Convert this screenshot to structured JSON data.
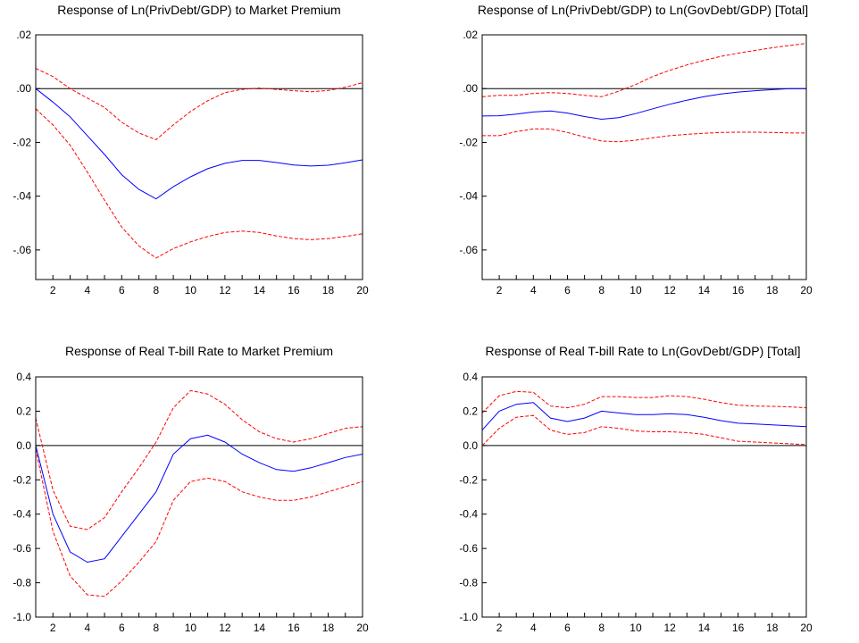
{
  "colors": {
    "response": "#0000ff",
    "bands": "#ff0000",
    "zero_line": "#000000",
    "frame": "#000000"
  },
  "chart_data": [
    {
      "type": "line",
      "title": "Response of Ln(PrivDebt/GDP) to Market Premium",
      "x": [
        1,
        2,
        3,
        4,
        5,
        6,
        7,
        8,
        9,
        10,
        11,
        12,
        13,
        14,
        15,
        16,
        17,
        18,
        19,
        20
      ],
      "xticks": [
        2,
        4,
        6,
        8,
        10,
        12,
        14,
        16,
        18,
        20
      ],
      "xlim": [
        1,
        20
      ],
      "ylim": [
        -0.071,
        0.02
      ],
      "yticks": [
        0.02,
        0.0,
        -0.02,
        -0.04,
        -0.06
      ],
      "ytick_labels": [
        ".02",
        ".00",
        "-.02",
        "-.04",
        "-.06"
      ],
      "series": [
        {
          "role": "response",
          "style": "solid",
          "values": [
            0.0,
            -0.005,
            -0.0105,
            -0.0175,
            -0.0245,
            -0.032,
            -0.0375,
            -0.041,
            -0.0365,
            -0.0328,
            -0.0298,
            -0.0278,
            -0.0267,
            -0.0267,
            -0.0275,
            -0.0284,
            -0.0288,
            -0.0285,
            -0.0276,
            -0.0265
          ]
        },
        {
          "role": "upper band",
          "style": "dashed",
          "values": [
            0.0075,
            0.0045,
            0.0,
            -0.0035,
            -0.007,
            -0.0125,
            -0.0165,
            -0.019,
            -0.0135,
            -0.0085,
            -0.0045,
            -0.0015,
            -0.0003,
            0.0002,
            -0.0003,
            -0.0008,
            -0.0012,
            -0.0007,
            0.0005,
            0.0022
          ]
        },
        {
          "role": "lower band",
          "style": "dashed",
          "values": [
            -0.0075,
            -0.0135,
            -0.021,
            -0.031,
            -0.0415,
            -0.0515,
            -0.0585,
            -0.063,
            -0.0595,
            -0.057,
            -0.055,
            -0.0535,
            -0.053,
            -0.0535,
            -0.0548,
            -0.0558,
            -0.0562,
            -0.0558,
            -0.055,
            -0.054
          ]
        }
      ]
    },
    {
      "type": "line",
      "title": "Response of Ln(PrivDebt/GDP) to Ln(GovDebt/GDP) [Total]",
      "x": [
        1,
        2,
        3,
        4,
        5,
        6,
        7,
        8,
        9,
        10,
        11,
        12,
        13,
        14,
        15,
        16,
        17,
        18,
        19,
        20
      ],
      "xticks": [
        2,
        4,
        6,
        8,
        10,
        12,
        14,
        16,
        18,
        20
      ],
      "xlim": [
        1,
        20
      ],
      "ylim": [
        -0.071,
        0.02
      ],
      "yticks": [
        0.02,
        0.0,
        -0.02,
        -0.04,
        -0.06
      ],
      "ytick_labels": [
        ".02",
        ".00",
        "-.02",
        "-.04",
        "-.06"
      ],
      "series": [
        {
          "role": "response",
          "style": "solid",
          "values": [
            -0.0102,
            -0.0101,
            -0.0095,
            -0.0087,
            -0.0083,
            -0.0091,
            -0.0104,
            -0.0114,
            -0.0108,
            -0.0093,
            -0.0075,
            -0.0058,
            -0.0043,
            -0.003,
            -0.002,
            -0.0013,
            -0.0008,
            -0.0004,
            0.0,
            0.0
          ]
        },
        {
          "role": "upper band",
          "style": "dashed",
          "values": [
            -0.003,
            -0.0025,
            -0.0025,
            -0.0018,
            -0.0015,
            -0.0018,
            -0.0025,
            -0.003,
            -0.001,
            0.0015,
            0.0045,
            0.0068,
            0.0088,
            0.0105,
            0.012,
            0.0132,
            0.0142,
            0.0152,
            0.016,
            0.0168
          ]
        },
        {
          "role": "lower band",
          "style": "dashed",
          "values": [
            -0.0175,
            -0.0175,
            -0.016,
            -0.015,
            -0.015,
            -0.0163,
            -0.018,
            -0.0195,
            -0.0198,
            -0.0192,
            -0.0183,
            -0.0175,
            -0.017,
            -0.0166,
            -0.0163,
            -0.0162,
            -0.0162,
            -0.0163,
            -0.0165,
            -0.0165
          ]
        }
      ]
    },
    {
      "type": "line",
      "title": "Response of Real T-bill Rate to Market Premium",
      "x": [
        1,
        2,
        3,
        4,
        5,
        6,
        7,
        8,
        9,
        10,
        11,
        12,
        13,
        14,
        15,
        16,
        17,
        18,
        19,
        20
      ],
      "xticks": [
        2,
        4,
        6,
        8,
        10,
        12,
        14,
        16,
        18,
        20
      ],
      "xlim": [
        1,
        20
      ],
      "ylim": [
        -1.0,
        0.4
      ],
      "yticks": [
        0.4,
        0.2,
        0.0,
        -0.2,
        -0.4,
        -0.6,
        -0.8,
        -1.0
      ],
      "ytick_labels": [
        "0.4",
        "0.2",
        "0.0",
        "-0.2",
        "-0.4",
        "-0.6",
        "-0.8",
        "-1.0"
      ],
      "series": [
        {
          "role": "response",
          "style": "solid",
          "values": [
            0.0,
            -0.4,
            -0.62,
            -0.68,
            -0.66,
            -0.53,
            -0.4,
            -0.27,
            -0.05,
            0.04,
            0.06,
            0.02,
            -0.05,
            -0.1,
            -0.14,
            -0.15,
            -0.13,
            -0.1,
            -0.07,
            -0.05
          ]
        },
        {
          "role": "upper band",
          "style": "dashed",
          "values": [
            0.16,
            -0.26,
            -0.47,
            -0.49,
            -0.42,
            -0.27,
            -0.13,
            0.02,
            0.22,
            0.32,
            0.3,
            0.24,
            0.15,
            0.08,
            0.04,
            0.02,
            0.04,
            0.07,
            0.1,
            0.11
          ]
        },
        {
          "role": "lower band",
          "style": "dashed",
          "values": [
            -0.02,
            -0.5,
            -0.76,
            -0.87,
            -0.88,
            -0.79,
            -0.68,
            -0.56,
            -0.32,
            -0.21,
            -0.19,
            -0.21,
            -0.27,
            -0.3,
            -0.32,
            -0.32,
            -0.3,
            -0.27,
            -0.24,
            -0.21
          ]
        }
      ]
    },
    {
      "type": "line",
      "title": "Response of Real T-bill Rate to Ln(GovDebt/GDP) [Total]",
      "x": [
        1,
        2,
        3,
        4,
        5,
        6,
        7,
        8,
        9,
        10,
        11,
        12,
        13,
        14,
        15,
        16,
        17,
        18,
        19,
        20
      ],
      "xticks": [
        2,
        4,
        6,
        8,
        10,
        12,
        14,
        16,
        18,
        20
      ],
      "xlim": [
        1,
        20
      ],
      "ylim": [
        -1.0,
        0.4
      ],
      "yticks": [
        0.4,
        0.2,
        0.0,
        -0.2,
        -0.4,
        -0.6,
        -0.8,
        -1.0
      ],
      "ytick_labels": [
        "0.4",
        "0.2",
        "0.0",
        "-0.2",
        "-0.4",
        "-0.6",
        "-0.8",
        "-1.0"
      ],
      "series": [
        {
          "role": "response",
          "style": "solid",
          "values": [
            0.09,
            0.2,
            0.24,
            0.25,
            0.16,
            0.14,
            0.16,
            0.2,
            0.19,
            0.18,
            0.18,
            0.185,
            0.18,
            0.165,
            0.145,
            0.13,
            0.125,
            0.12,
            0.115,
            0.11
          ]
        },
        {
          "role": "upper band",
          "style": "dashed",
          "values": [
            0.19,
            0.29,
            0.315,
            0.31,
            0.23,
            0.22,
            0.24,
            0.285,
            0.285,
            0.28,
            0.28,
            0.29,
            0.285,
            0.27,
            0.25,
            0.235,
            0.23,
            0.228,
            0.225,
            0.22
          ]
        },
        {
          "role": "lower band",
          "style": "dashed",
          "values": [
            0.0,
            0.1,
            0.165,
            0.175,
            0.09,
            0.065,
            0.075,
            0.11,
            0.1,
            0.085,
            0.08,
            0.08,
            0.075,
            0.065,
            0.045,
            0.025,
            0.02,
            0.015,
            0.01,
            0.005
          ]
        }
      ]
    }
  ]
}
